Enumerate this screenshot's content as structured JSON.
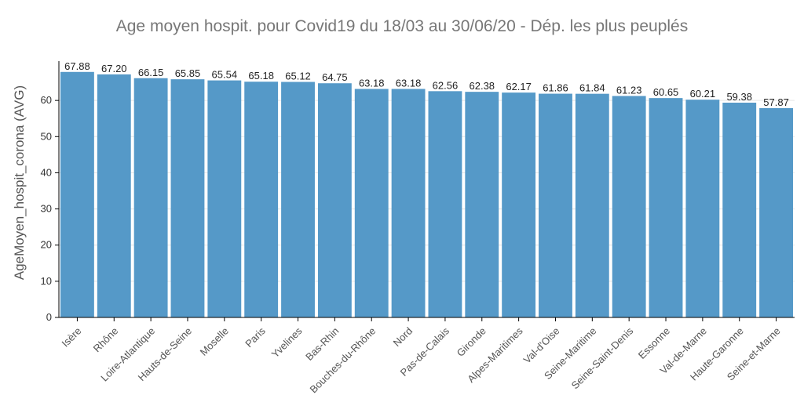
{
  "chart_data": {
    "type": "bar",
    "title": "Age moyen hospit. pour Covid19 du 18/03 au 30/06/20 - Dép. les plus peuplés",
    "ylabel": "AgeMoyen_hospit_corona (AVG)",
    "xlabel": "",
    "ylim": [
      0,
      70
    ],
    "yticks": [
      0,
      10,
      20,
      30,
      40,
      50,
      60
    ],
    "grid": true,
    "bar_color": "#5599c8",
    "categories": [
      "Isère",
      "Rhône",
      "Loire-Atlantique",
      "Hauts-de-Seine",
      "Moselle",
      "Paris",
      "Yvelines",
      "Bas-Rhin",
      "Bouches-du-Rhône",
      "Nord",
      "Pas-de-Calais",
      "Gironde",
      "Alpes-Maritimes",
      "Val-d'Oise",
      "Seine-Maritime",
      "Seine-Saint-Denis",
      "Essonne",
      "Val-de-Marne",
      "Haute-Garonne",
      "Seine-et-Marne"
    ],
    "values": [
      67.88,
      67.2,
      66.15,
      65.85,
      65.54,
      65.18,
      65.12,
      64.75,
      63.18,
      63.18,
      62.56,
      62.38,
      62.17,
      61.86,
      61.84,
      61.23,
      60.65,
      60.21,
      59.38,
      57.87
    ],
    "value_labels": [
      "67.88",
      "67.20",
      "66.15",
      "65.85",
      "65.54",
      "65.18",
      "65.12",
      "64.75",
      "63.18",
      "63.18",
      "62.56",
      "62.38",
      "62.17",
      "61.86",
      "61.84",
      "61.23",
      "60.65",
      "60.21",
      "59.38",
      "57.87"
    ]
  }
}
